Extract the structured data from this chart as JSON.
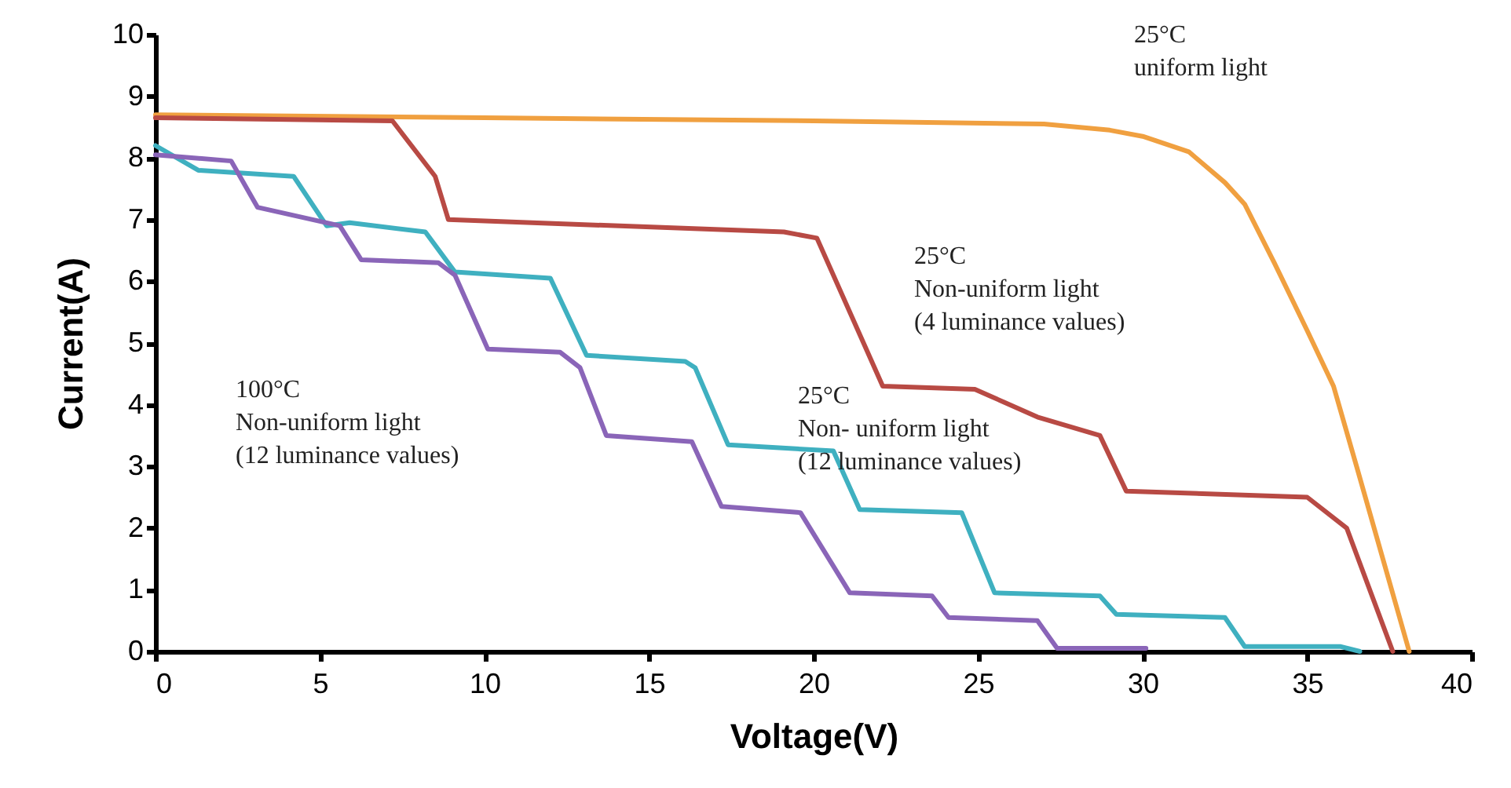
{
  "chart_data": {
    "type": "line",
    "xlabel": "Voltage(V)",
    "ylabel": "Current(A)",
    "xlim": [
      0,
      40
    ],
    "ylim": [
      0,
      10
    ],
    "xticks": [
      0,
      5,
      10,
      15,
      20,
      25,
      30,
      35,
      40
    ],
    "yticks": [
      0,
      1,
      2,
      3,
      4,
      5,
      6,
      7,
      8,
      9,
      10
    ],
    "grid": false,
    "legend": false,
    "marker": "none",
    "line_style": "solid",
    "series": [
      {
        "name": "25°C\nuniform light",
        "color": "#f0a040",
        "x": [
          0,
          10,
          20,
          27,
          29,
          30,
          31.4,
          32.5,
          33.1,
          34,
          35,
          35.8,
          36.5,
          37.3,
          38.1
        ],
        "values": [
          8.7,
          8.65,
          8.6,
          8.55,
          8.45,
          8.35,
          8.1,
          7.6,
          7.25,
          6.3,
          5.2,
          4.3,
          3.0,
          1.5,
          0
        ]
      },
      {
        "name": "25°C\nNon-uniform light\n(4 luminance values)",
        "color": "#b84a44",
        "x": [
          0,
          7.2,
          8.5,
          8.9,
          19.1,
          20.1,
          22.1,
          24.9,
          26.8,
          28.7,
          29.5,
          35.0,
          36.2,
          37.6
        ],
        "values": [
          8.65,
          8.6,
          7.7,
          7.0,
          6.8,
          6.7,
          4.3,
          4.25,
          3.8,
          3.5,
          2.6,
          2.5,
          2.0,
          0
        ]
      },
      {
        "name": "25°C\nNon- uniform light\n(12 luminance values)",
        "color": "#3fb0c0",
        "x": [
          0,
          1.3,
          4.2,
          5.2,
          5.9,
          8.2,
          9.1,
          12.0,
          13.1,
          16.1,
          16.4,
          17.4,
          20.6,
          21.4,
          24.5,
          25.5,
          28.7,
          29.2,
          32.5,
          33.1,
          36.0,
          36.6
        ],
        "values": [
          8.2,
          7.8,
          7.7,
          6.9,
          6.95,
          6.8,
          6.15,
          6.05,
          4.8,
          4.7,
          4.6,
          3.35,
          3.25,
          2.3,
          2.25,
          0.95,
          0.9,
          0.6,
          0.55,
          0.08,
          0.08,
          0
        ]
      },
      {
        "name": "100°C\nNon-uniform light\n(12 luminance values)",
        "color": "#8a65b8",
        "x": [
          0,
          2.3,
          3.1,
          5.6,
          6.25,
          8.6,
          9.1,
          10.1,
          12.3,
          12.9,
          13.7,
          16.3,
          17.2,
          19.6,
          21.1,
          23.6,
          24.1,
          26.8,
          27.4,
          30.1
        ],
        "values": [
          8.05,
          7.95,
          7.2,
          6.9,
          6.35,
          6.3,
          6.1,
          4.9,
          4.85,
          4.6,
          3.5,
          3.4,
          2.35,
          2.25,
          0.95,
          0.9,
          0.55,
          0.5,
          0.05,
          0.05
        ]
      }
    ]
  }
}
